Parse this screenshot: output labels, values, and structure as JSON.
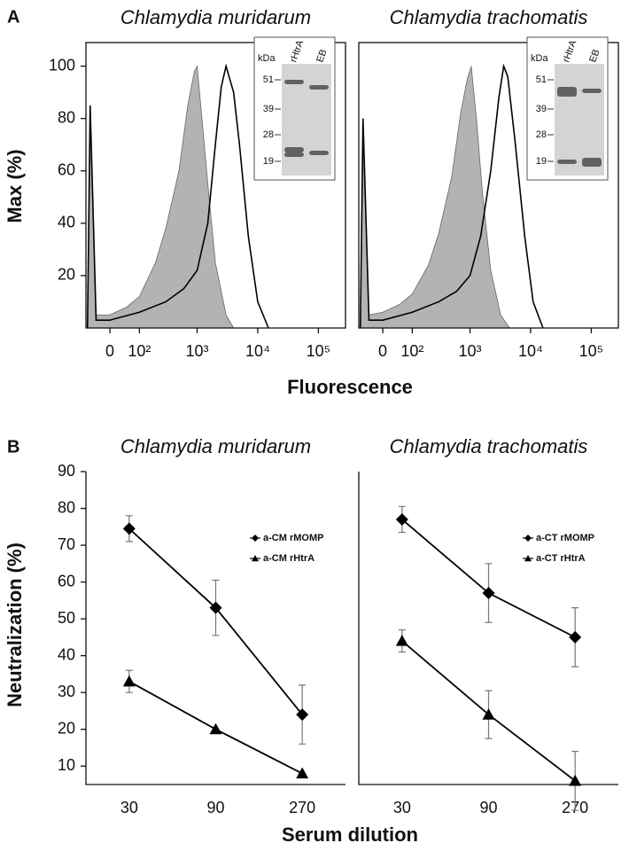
{
  "figure": {
    "panel_labels": [
      "A",
      "B"
    ],
    "top_ylabel": "Max (%)",
    "top_xlabel": "Fluorescence",
    "bottom_ylabel": "Neutralization (%)",
    "bottom_xlabel": "Serum dilution"
  },
  "chart_data": [
    {
      "type": "area",
      "title": "Chlamydia muridarum",
      "xscale": "biexponential",
      "xlim": [
        -76,
        280000
      ],
      "ylim": [
        0,
        109
      ],
      "xticks": [
        0,
        {
          "value": 100,
          "label": "10²"
        },
        {
          "value": 1000,
          "label": "10³"
        },
        {
          "value": 10000,
          "label": "10⁴"
        },
        {
          "value": 100000,
          "label": "10⁵"
        }
      ],
      "yticks": [
        20,
        40,
        60,
        80,
        100
      ],
      "series": [
        {
          "color": "#666666",
          "fill": "#b3b3b3",
          "x": [
            -70,
            -60,
            -40,
            0,
            50,
            100,
            200,
            300,
            500,
            700,
            900,
            1000,
            1200,
            1500,
            2000,
            3000,
            4000
          ],
          "values": [
            0,
            80,
            5,
            5,
            8,
            12,
            25,
            38,
            60,
            85,
            98,
            100,
            80,
            55,
            25,
            5,
            0
          ]
        },
        {
          "color": "#000000",
          "x": [
            -70,
            -60,
            -40,
            0,
            100,
            300,
            600,
            1000,
            1500,
            2000,
            2500,
            3000,
            4000,
            5000,
            7000,
            10000,
            15000
          ],
          "values": [
            0,
            85,
            3,
            3,
            6,
            10,
            15,
            22,
            40,
            70,
            92,
            100,
            90,
            70,
            35,
            10,
            0
          ]
        }
      ],
      "inset": {
        "unit": "kDa",
        "lanes": [
          "rHtrA",
          "EB"
        ],
        "markers": [
          "51",
          "39",
          "28",
          "19"
        ]
      }
    },
    {
      "type": "area",
      "title": "Chlamydia trachomatis",
      "xscale": "biexponential",
      "xlim": [
        -76,
        280000
      ],
      "ylim": [
        0,
        109
      ],
      "xticks": [
        0,
        {
          "value": 100,
          "label": "10²"
        },
        {
          "value": 1000,
          "label": "10³"
        },
        {
          "value": 10000,
          "label": "10⁴"
        },
        {
          "value": 100000,
          "label": "10⁵"
        }
      ],
      "series": [
        {
          "color": "#666666",
          "fill": "#b3b3b3",
          "x": [
            -70,
            -60,
            -40,
            0,
            50,
            100,
            200,
            300,
            500,
            700,
            900,
            1050,
            1300,
            1600,
            2200,
            3200,
            4500
          ],
          "values": [
            0,
            75,
            5,
            6,
            9,
            13,
            24,
            36,
            58,
            82,
            95,
            100,
            78,
            52,
            22,
            5,
            0
          ]
        },
        {
          "color": "#000000",
          "x": [
            -70,
            -60,
            -40,
            0,
            100,
            300,
            600,
            1000,
            1500,
            2200,
            3000,
            3600,
            4200,
            5500,
            8000,
            11000,
            16000
          ],
          "values": [
            0,
            80,
            3,
            3,
            6,
            10,
            14,
            20,
            35,
            60,
            88,
            100,
            96,
            72,
            35,
            10,
            0
          ]
        }
      ],
      "inset": {
        "unit": "kDa",
        "lanes": [
          "rHtrA",
          "EB"
        ],
        "markers": [
          "51",
          "39",
          "28",
          "19"
        ]
      }
    },
    {
      "type": "line",
      "title": "Chlamydia muridarum",
      "categories": [
        "30",
        "90",
        "270"
      ],
      "ylim": [
        5,
        90
      ],
      "yticks": [
        10,
        20,
        30,
        40,
        50,
        60,
        70,
        80,
        90
      ],
      "legend": "right",
      "series": [
        {
          "name": "a-CM rMOMP",
          "color": "#000000",
          "marker": "diamond",
          "values": [
            74.5,
            53,
            24
          ],
          "errors": [
            3.5,
            7.5,
            8
          ]
        },
        {
          "name": "a-CM rHtrA",
          "color": "#000000",
          "marker": "triangle",
          "values": [
            33,
            20,
            8
          ],
          "errors": [
            3,
            0,
            0
          ]
        }
      ]
    },
    {
      "type": "line",
      "title": "Chlamydia trachomatis",
      "categories": [
        "30",
        "90",
        "270"
      ],
      "ylim": [
        5,
        90
      ],
      "legend": "right",
      "series": [
        {
          "name": "a-CT rMOMP",
          "color": "#000000",
          "marker": "diamond",
          "values": [
            77,
            57,
            45
          ],
          "errors": [
            3.5,
            8,
            8
          ]
        },
        {
          "name": "a-CT rHtrA",
          "color": "#000000",
          "marker": "triangle",
          "values": [
            44,
            24,
            6
          ],
          "errors": [
            3,
            6.5,
            8
          ]
        }
      ]
    }
  ]
}
